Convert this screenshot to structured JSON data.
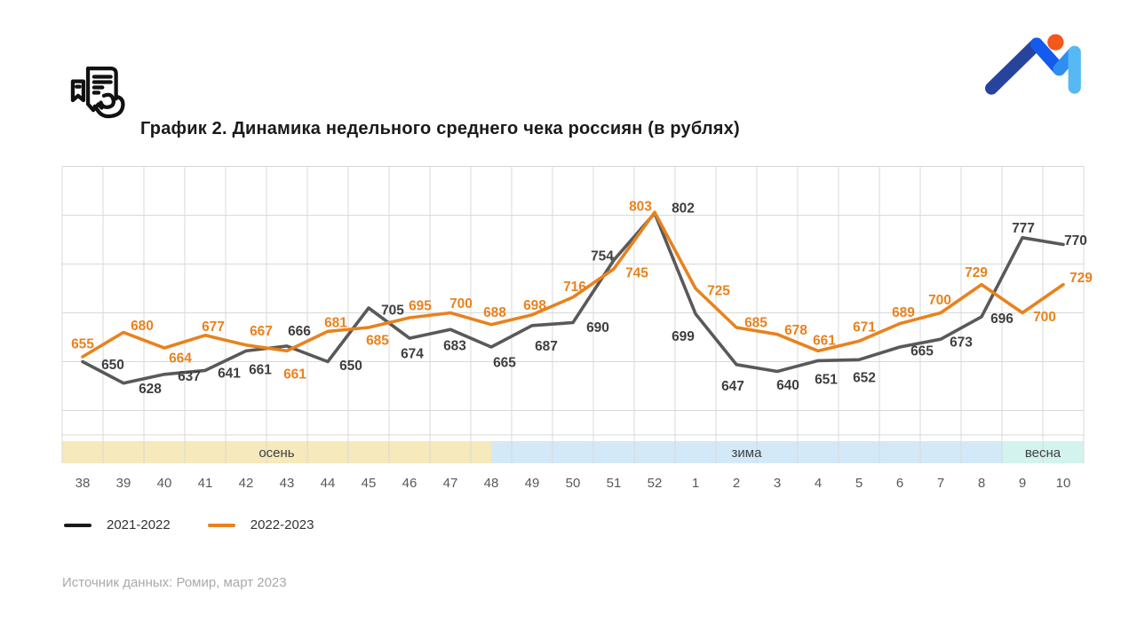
{
  "title": "График 2. Динамика недельного среднего чека россиян (в рублях)",
  "icons": {
    "top_left": "receipt-in-hand-icon",
    "top_right": "brand-m-logo"
  },
  "brand": {
    "logo_colors": {
      "navy": "#26449E",
      "blue": "#135BEC",
      "mid_blue": "#2F8FF0",
      "light_blue": "#56B9F4",
      "dot_orange": "#F4581C"
    }
  },
  "chart_data": {
    "type": "line",
    "categories": [
      "38",
      "39",
      "40",
      "41",
      "42",
      "43",
      "44",
      "45",
      "46",
      "47",
      "48",
      "49",
      "50",
      "51",
      "52",
      "1",
      "2",
      "3",
      "4",
      "5",
      "6",
      "7",
      "8",
      "9",
      "10"
    ],
    "series": [
      {
        "name": "2021-2022",
        "color": "#595959",
        "label_color": "#3f3f3f",
        "values": [
          650,
          628,
          637,
          641,
          661,
          666,
          650,
          705,
          674,
          683,
          665,
          687,
          690,
          754,
          802,
          699,
          647,
          640,
          651,
          652,
          665,
          673,
          696,
          777,
          770
        ],
        "label_offsets": [
          [
            34,
            3
          ],
          [
            30,
            6
          ],
          [
            28,
            2
          ],
          [
            27,
            3
          ],
          [
            16,
            21
          ],
          [
            14,
            -17
          ],
          [
            26,
            4
          ],
          [
            27,
            2
          ],
          [
            3,
            17
          ],
          [
            5,
            18
          ],
          [
            15,
            17
          ],
          [
            16,
            23
          ],
          [
            28,
            5
          ],
          [
            -13,
            -5
          ],
          [
            32,
            -6
          ],
          [
            -14,
            25
          ],
          [
            -4,
            24
          ],
          [
            12,
            15
          ],
          [
            9,
            21
          ],
          [
            6,
            20
          ],
          [
            25,
            4
          ],
          [
            23,
            3
          ],
          [
            23,
            2
          ],
          [
            1,
            -11
          ],
          [
            14,
            -5
          ]
        ]
      },
      {
        "name": "2022-2023",
        "color": "#E8821E",
        "label_color": "#E8821E",
        "values": [
          655,
          680,
          664,
          677,
          667,
          661,
          681,
          685,
          695,
          700,
          688,
          698,
          716,
          745,
          803,
          725,
          685,
          678,
          661,
          671,
          689,
          700,
          729,
          700,
          729
        ],
        "label_offsets": [
          [
            0,
            -15
          ],
          [
            21,
            -8
          ],
          [
            18,
            11
          ],
          [
            9,
            -10
          ],
          [
            17,
            -16
          ],
          [
            9,
            26
          ],
          [
            9,
            -10
          ],
          [
            10,
            14
          ],
          [
            12,
            -14
          ],
          [
            12,
            -11
          ],
          [
            4,
            -14
          ],
          [
            3,
            -11
          ],
          [
            2,
            -12
          ],
          [
            26,
            4
          ],
          [
            -16,
            -7
          ],
          [
            26,
            2
          ],
          [
            22,
            -6
          ],
          [
            21,
            -5
          ],
          [
            7,
            -12
          ],
          [
            6,
            -16
          ],
          [
            4,
            -13
          ],
          [
            -1,
            -15
          ],
          [
            -6,
            -14
          ],
          [
            25,
            4
          ],
          [
            20,
            -8
          ]
        ]
      }
    ],
    "ylim": [
      575,
      850
    ],
    "yticks": [
      600,
      650,
      700,
      750,
      800,
      850
    ],
    "grid": true,
    "grid_color": "#d9d9d9",
    "axis_label_color": "#595959",
    "legend_position": "bottom-left",
    "season_bands": [
      {
        "label": "осень",
        "color": "#F6E9BB",
        "from": 0,
        "to": 10.5
      },
      {
        "label": "зима",
        "color": "#D3E9F8",
        "from": 10.5,
        "to": 23
      },
      {
        "label": "весна",
        "color": "#D3F3EE",
        "from": 23,
        "to": 25
      }
    ],
    "band_label_color": "#404040"
  },
  "legend": {
    "items": [
      {
        "label": "2021-2022",
        "color": "#1a1a1a"
      },
      {
        "label": "2022-2023",
        "color": "#E8821E"
      }
    ]
  },
  "footer": {
    "source": "Источник данных: Ромир, март 2023"
  }
}
